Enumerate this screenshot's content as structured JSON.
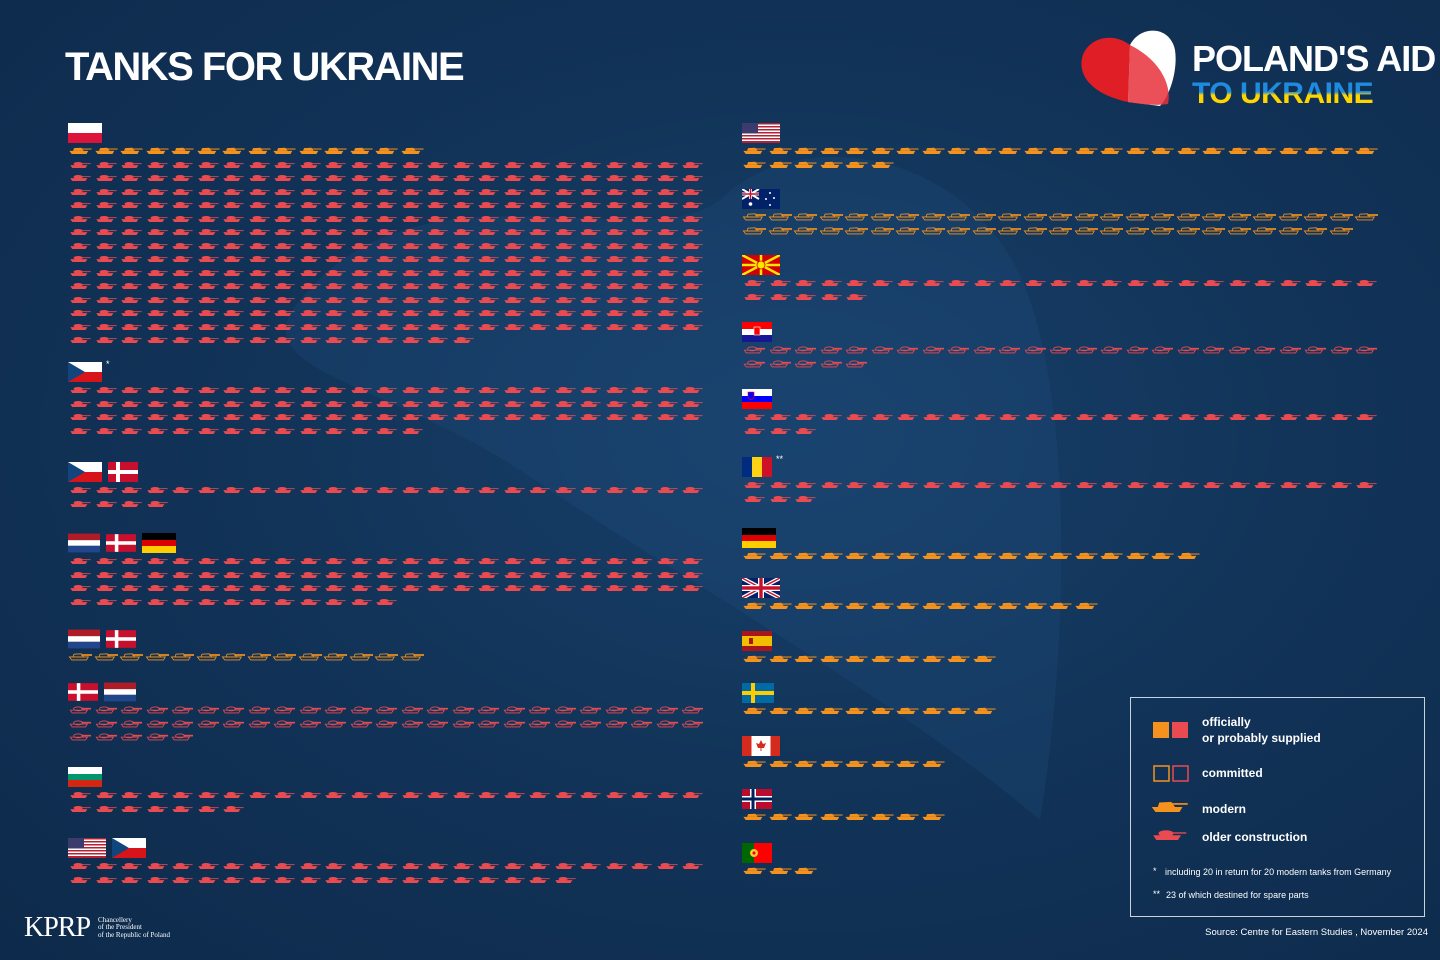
{
  "header": {
    "title": "TANKS FOR UKRAINE",
    "brand_line1": "POLAND'S AID",
    "brand_line2": "TO UKRAINE"
  },
  "colors": {
    "modern": "#f5921e",
    "older": "#e94b50"
  },
  "columns": [
    {
      "groups": [
        {
          "entries": [
            {
              "kind": "modern",
              "status": "supplied",
              "count": 14
            },
            {
              "kind": "older",
              "status": "supplied",
              "count": 341
            }
          ]
        },
        {
          "note": "*",
          "entries": [
            {
              "kind": "older",
              "status": "supplied",
              "count": 89
            }
          ]
        },
        {
          "entries": [
            {
              "kind": "older",
              "status": "supplied",
              "count": 29
            }
          ]
        },
        {
          "entries": [
            {
              "kind": "older",
              "status": "supplied",
              "count": 88
            }
          ]
        },
        {
          "entries": [
            {
              "kind": "modern",
              "status": "committed",
              "count": 14
            }
          ]
        },
        {
          "entries": [
            {
              "kind": "older",
              "status": "committed",
              "count": 55
            }
          ]
        },
        {
          "entries": [
            {
              "kind": "older",
              "status": "supplied",
              "count": 32
            }
          ]
        },
        {
          "entries": [
            {
              "kind": "older",
              "status": "supplied",
              "count": 45
            }
          ]
        }
      ]
    },
    {
      "groups": [
        {
          "entries": [
            {
              "kind": "modern",
              "status": "supplied",
              "count": 31
            }
          ]
        },
        {
          "entries": [
            {
              "kind": "modern",
              "status": "committed",
              "count": 49
            }
          ]
        },
        {
          "entries": [
            {
              "kind": "older",
              "status": "supplied",
              "count": 30
            }
          ]
        },
        {
          "entries": [
            {
              "kind": "older",
              "status": "committed",
              "count": 30
            }
          ]
        },
        {
          "entries": [
            {
              "kind": "older",
              "status": "supplied",
              "count": 28
            }
          ]
        },
        {
          "note": "**",
          "entries": [
            {
              "kind": "older",
              "status": "supplied",
              "count": 28
            }
          ]
        },
        {
          "entries": [
            {
              "kind": "modern",
              "status": "supplied",
              "count": 18
            }
          ]
        },
        {
          "entries": [
            {
              "kind": "modern",
              "status": "supplied",
              "count": 14
            }
          ]
        },
        {
          "entries": [
            {
              "kind": "modern",
              "status": "supplied",
              "count": 10
            }
          ]
        },
        {
          "entries": [
            {
              "kind": "modern",
              "status": "supplied",
              "count": 10
            }
          ]
        },
        {
          "entries": [
            {
              "kind": "modern",
              "status": "supplied",
              "count": 8
            }
          ]
        },
        {
          "entries": [
            {
              "kind": "modern",
              "status": "supplied",
              "count": 8
            }
          ]
        },
        {
          "entries": [
            {
              "kind": "modern",
              "status": "supplied",
              "count": 3
            }
          ]
        }
      ]
    }
  ],
  "legend": {
    "supplied": [
      "officially",
      "or probably supplied"
    ],
    "committed": "committed",
    "modern": "modern",
    "older": "older construction"
  },
  "notes": [
    {
      "marker": "*",
      "text": "including 20 in return for 20 modern tanks from Germany"
    },
    {
      "marker": "**",
      "text": "23 of which destined for spare parts"
    }
  ],
  "source": "Source: Centre for Eastern Studies , November 2024",
  "logo": {
    "mark": "KPRP",
    "lines": [
      "Chancellery",
      "of the President",
      "of the Republic of Poland"
    ]
  }
}
